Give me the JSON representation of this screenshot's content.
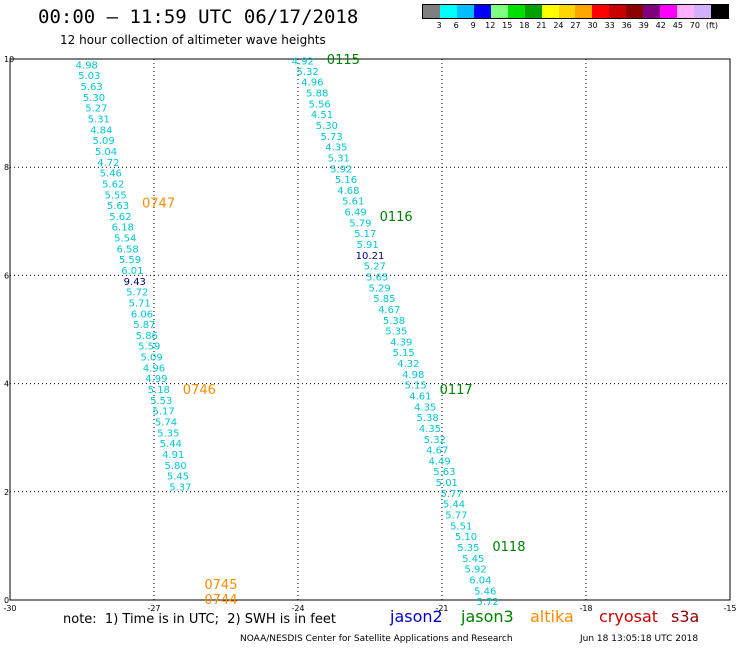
{
  "title": "00:00 – 11:59 UTC 06/17/2018",
  "subtitle": "12 hour collection of altimeter wave heights",
  "legend": {
    "colors": [
      "#7f7f7f",
      "#00ffff",
      "#00bfff",
      "#0000ff",
      "#7fff7f",
      "#00e000",
      "#00a000",
      "#ffff00",
      "#ffd700",
      "#ffa500",
      "#ff0000",
      "#c80000",
      "#8b0000",
      "#800080",
      "#ff00ff",
      "#ffb0ff",
      "#d0b0ff",
      "#000000"
    ],
    "labels": [
      "3",
      "6",
      "9",
      "12",
      "15",
      "18",
      "21",
      "24",
      "27",
      "30",
      "33",
      "36",
      "39",
      "42",
      "45",
      "70",
      "(ft)"
    ]
  },
  "axes": {
    "x_ticks": [
      "-30",
      "-27",
      "-24",
      "-21",
      "-18",
      "-15"
    ],
    "x_values": [
      -30,
      -27,
      -24,
      -21,
      -18,
      -15
    ],
    "y_ticks": [
      "0",
      "2",
      "4",
      "6",
      "8",
      "10"
    ],
    "y_values": [
      0,
      2,
      4,
      6,
      8,
      10
    ]
  },
  "tracks": [
    {
      "satellite": "jason3",
      "time_labels": [
        "0115",
        "0116",
        "0117",
        "0118"
      ],
      "time_label_lat": [
        10.0,
        7.1,
        3.9,
        1.0
      ],
      "time_label_color": "#008000",
      "readings": [
        {
          "lon": -23.9,
          "lat": 9.97,
          "swh": "4.92"
        },
        {
          "lon": -23.8,
          "lat": 9.78,
          "swh": "5.32"
        },
        {
          "lon": -23.7,
          "lat": 9.58,
          "swh": "4.96"
        },
        {
          "lon": -23.6,
          "lat": 9.38,
          "swh": "5.88"
        },
        {
          "lon": -23.55,
          "lat": 9.18,
          "swh": "5.56"
        },
        {
          "lon": -23.5,
          "lat": 8.98,
          "swh": "4.51"
        },
        {
          "lon": -23.4,
          "lat": 8.78,
          "swh": "5.30"
        },
        {
          "lon": -23.3,
          "lat": 8.58,
          "swh": "5.73"
        },
        {
          "lon": -23.2,
          "lat": 8.38,
          "swh": "4.35"
        },
        {
          "lon": -23.15,
          "lat": 8.18,
          "swh": "5.31"
        },
        {
          "lon": -23.1,
          "lat": 7.98,
          "swh": "5.92"
        },
        {
          "lon": -23.0,
          "lat": 7.78,
          "swh": "5.16"
        },
        {
          "lon": -22.95,
          "lat": 7.58,
          "swh": "4.68"
        },
        {
          "lon": -22.85,
          "lat": 7.38,
          "swh": "5.61"
        },
        {
          "lon": -22.8,
          "lat": 7.18,
          "swh": "6.49"
        },
        {
          "lon": -22.7,
          "lat": 6.98,
          "swh": "5.79"
        },
        {
          "lon": -22.6,
          "lat": 6.78,
          "swh": "5.17"
        },
        {
          "lon": -22.55,
          "lat": 6.58,
          "swh": "5.91"
        },
        {
          "lon": -22.5,
          "lat": 6.38,
          "swh": "10.21",
          "color": "#000080"
        },
        {
          "lon": -22.4,
          "lat": 6.18,
          "swh": "5.27"
        },
        {
          "lon": -22.35,
          "lat": 5.98,
          "swh": "5.65"
        },
        {
          "lon": -22.3,
          "lat": 5.78,
          "swh": "5.29"
        },
        {
          "lon": -22.2,
          "lat": 5.58,
          "swh": "5.85"
        },
        {
          "lon": -22.1,
          "lat": 5.38,
          "swh": "4.67"
        },
        {
          "lon": -22.0,
          "lat": 5.18,
          "swh": "5.38"
        },
        {
          "lon": -21.95,
          "lat": 4.98,
          "swh": "5.35"
        },
        {
          "lon": -21.85,
          "lat": 4.78,
          "swh": "4.39"
        },
        {
          "lon": -21.8,
          "lat": 4.58,
          "swh": "5.15"
        },
        {
          "lon": -21.7,
          "lat": 4.38,
          "swh": "4.32"
        },
        {
          "lon": -21.6,
          "lat": 4.18,
          "swh": "4.98"
        },
        {
          "lon": -21.55,
          "lat": 3.98,
          "swh": "5.15"
        },
        {
          "lon": -21.45,
          "lat": 3.78,
          "swh": "4.61"
        },
        {
          "lon": -21.35,
          "lat": 3.58,
          "swh": "4.35"
        },
        {
          "lon": -21.3,
          "lat": 3.38,
          "swh": "5.38"
        },
        {
          "lon": -21.25,
          "lat": 3.18,
          "swh": "4.35"
        },
        {
          "lon": -21.15,
          "lat": 2.98,
          "swh": "5.32"
        },
        {
          "lon": -21.1,
          "lat": 2.78,
          "swh": "4.67"
        },
        {
          "lon": -21.05,
          "lat": 2.58,
          "swh": "4.49"
        },
        {
          "lon": -20.95,
          "lat": 2.38,
          "swh": "5.63"
        },
        {
          "lon": -20.9,
          "lat": 2.18,
          "swh": "5.01"
        },
        {
          "lon": -20.8,
          "lat": 1.98,
          "swh": "5.77"
        },
        {
          "lon": -20.75,
          "lat": 1.78,
          "swh": "5.44"
        },
        {
          "lon": -20.7,
          "lat": 1.58,
          "swh": "5.77"
        },
        {
          "lon": -20.6,
          "lat": 1.38,
          "swh": "5.51"
        },
        {
          "lon": -20.5,
          "lat": 1.18,
          "swh": "5.10"
        },
        {
          "lon": -20.45,
          "lat": 0.98,
          "swh": "5.35"
        },
        {
          "lon": -20.35,
          "lat": 0.78,
          "swh": "5.45"
        },
        {
          "lon": -20.3,
          "lat": 0.58,
          "swh": "5.92"
        },
        {
          "lon": -20.2,
          "lat": 0.38,
          "swh": "6.04"
        },
        {
          "lon": -20.1,
          "lat": 0.18,
          "swh": "5.46"
        },
        {
          "lon": -20.05,
          "lat": -0.02,
          "swh": "5.72"
        }
      ]
    },
    {
      "satellite": "altika",
      "time_labels": [
        "0747",
        "0746",
        "0745",
        "0744"
      ],
      "time_label_lat": [
        7.35,
        3.9,
        0.3,
        0.02
      ],
      "time_label_color": "#ff8c00",
      "readings": [
        {
          "lon": -28.4,
          "lat": 9.9,
          "swh": "4.98"
        },
        {
          "lon": -28.35,
          "lat": 9.7,
          "swh": "5.03"
        },
        {
          "lon": -28.3,
          "lat": 9.5,
          "swh": "5.63"
        },
        {
          "lon": -28.25,
          "lat": 9.3,
          "swh": "5.30"
        },
        {
          "lon": -28.2,
          "lat": 9.1,
          "swh": "5.27"
        },
        {
          "lon": -28.15,
          "lat": 8.9,
          "swh": "5.31"
        },
        {
          "lon": -28.1,
          "lat": 8.7,
          "swh": "4.84"
        },
        {
          "lon": -28.05,
          "lat": 8.5,
          "swh": "5.09"
        },
        {
          "lon": -28.0,
          "lat": 8.3,
          "swh": "5.04"
        },
        {
          "lon": -27.95,
          "lat": 8.1,
          "swh": "4.72"
        },
        {
          "lon": -27.9,
          "lat": 7.9,
          "swh": "5.46"
        },
        {
          "lon": -27.85,
          "lat": 7.7,
          "swh": "5.62"
        },
        {
          "lon": -27.8,
          "lat": 7.5,
          "swh": "5.55"
        },
        {
          "lon": -27.75,
          "lat": 7.3,
          "swh": "5.63"
        },
        {
          "lon": -27.7,
          "lat": 7.1,
          "swh": "5.62"
        },
        {
          "lon": -27.65,
          "lat": 6.9,
          "swh": "6.18"
        },
        {
          "lon": -27.6,
          "lat": 6.7,
          "swh": "5.54"
        },
        {
          "lon": -27.55,
          "lat": 6.5,
          "swh": "6.58"
        },
        {
          "lon": -27.5,
          "lat": 6.3,
          "swh": "5.59"
        },
        {
          "lon": -27.45,
          "lat": 6.1,
          "swh": "6.01"
        },
        {
          "lon": -27.4,
          "lat": 5.9,
          "swh": "9.43",
          "color": "#000080"
        },
        {
          "lon": -27.35,
          "lat": 5.7,
          "swh": "5.72"
        },
        {
          "lon": -27.3,
          "lat": 5.5,
          "swh": "5.71"
        },
        {
          "lon": -27.25,
          "lat": 5.3,
          "swh": "6.06"
        },
        {
          "lon": -27.2,
          "lat": 5.1,
          "swh": "5.87"
        },
        {
          "lon": -27.15,
          "lat": 4.9,
          "swh": "5.86"
        },
        {
          "lon": -27.1,
          "lat": 4.7,
          "swh": "5.59"
        },
        {
          "lon": -27.05,
          "lat": 4.5,
          "swh": "5.09"
        },
        {
          "lon": -27.0,
          "lat": 4.3,
          "swh": "4.96"
        },
        {
          "lon": -26.95,
          "lat": 4.1,
          "swh": "4.99"
        },
        {
          "lon": -26.9,
          "lat": 3.9,
          "swh": "5.18"
        },
        {
          "lon": -26.85,
          "lat": 3.7,
          "swh": "5.53"
        },
        {
          "lon": -26.8,
          "lat": 3.5,
          "swh": "5.17"
        },
        {
          "lon": -26.75,
          "lat": 3.3,
          "swh": "5.74"
        },
        {
          "lon": -26.7,
          "lat": 3.1,
          "swh": "5.35"
        },
        {
          "lon": -26.65,
          "lat": 2.9,
          "swh": "5.44"
        },
        {
          "lon": -26.6,
          "lat": 2.7,
          "swh": "4.91"
        },
        {
          "lon": -26.55,
          "lat": 2.5,
          "swh": "5.80"
        },
        {
          "lon": -26.5,
          "lat": 2.3,
          "swh": "5.45"
        },
        {
          "lon": -26.45,
          "lat": 2.1,
          "swh": "5.37"
        }
      ]
    }
  ],
  "note": "note:  1) Time is in UTC;  2) SWH is in feet",
  "satellites": [
    {
      "name": "jason2",
      "color": "#0000cd"
    },
    {
      "name": "jason3",
      "color": "#008000"
    },
    {
      "name": "altika",
      "color": "#ff8c00"
    },
    {
      "name": "cryosat",
      "color": "#cc0000"
    },
    {
      "name": "s3a",
      "color": "#8b0000"
    }
  ],
  "credit": "NOAA/NESDIS Center for Satellite Applications and Research",
  "timestamp": "Jun 18 13:05:18 UTC 2018",
  "colors": {
    "reading": "#00c8d2",
    "grid": "#000000"
  }
}
